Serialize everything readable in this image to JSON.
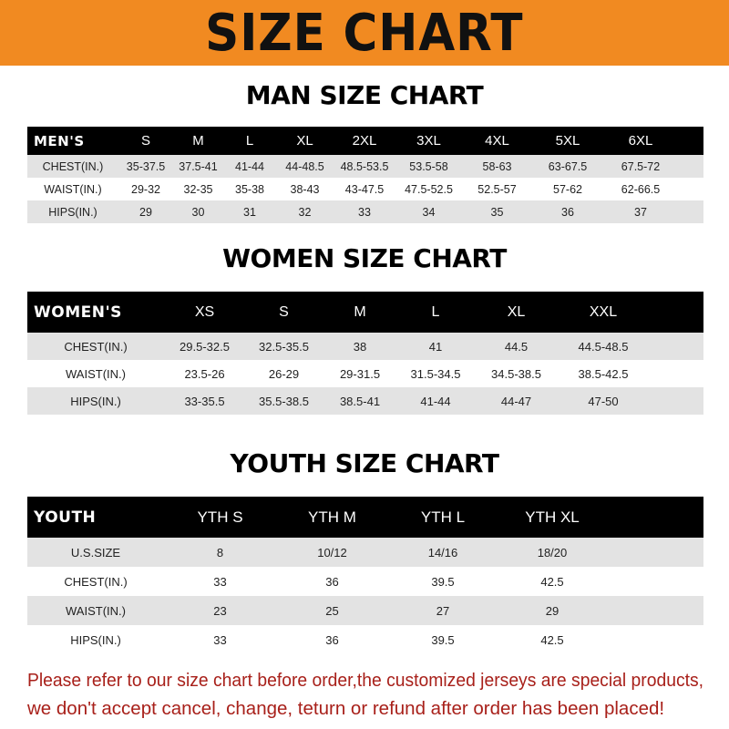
{
  "banner_title": "SIZE CHART",
  "men": {
    "title": "MAN SIZE CHART",
    "header": [
      "MEN'S",
      "S",
      "M",
      "L",
      "XL",
      "2XL",
      "3XL",
      "4XL",
      "5XL",
      "6XL"
    ],
    "rows": [
      [
        "CHEST(IN.)",
        "35-37.5",
        "37.5-41",
        "41-44",
        "44-48.5",
        "48.5-53.5",
        "53.5-58",
        "58-63",
        "63-67.5",
        "67.5-72"
      ],
      [
        "WAIST(IN.)",
        "29-32",
        "32-35",
        "35-38",
        "38-43",
        "43-47.5",
        "47.5-52.5",
        "52.5-57",
        "57-62",
        "62-66.5"
      ],
      [
        "HIPS(IN.)",
        "29",
        "30",
        "31",
        "32",
        "33",
        "34",
        "35",
        "36",
        "37"
      ]
    ]
  },
  "women": {
    "title": "WOMEN SIZE CHART",
    "header": [
      "WOMEN'S",
      "XS",
      "S",
      "M",
      "L",
      "XL",
      "XXL"
    ],
    "rows": [
      [
        "CHEST(IN.)",
        "29.5-32.5",
        "32.5-35.5",
        "38",
        "41",
        "44.5",
        "44.5-48.5"
      ],
      [
        "WAIST(IN.)",
        "23.5-26",
        "26-29",
        "29-31.5",
        "31.5-34.5",
        "34.5-38.5",
        "38.5-42.5"
      ],
      [
        "HIPS(IN.)",
        "33-35.5",
        "35.5-38.5",
        "38.5-41",
        "41-44",
        "44-47",
        "47-50"
      ]
    ]
  },
  "youth": {
    "title": "YOUTH SIZE CHART",
    "header": [
      "YOUTH",
      "YTH S",
      "YTH M",
      "YTH L",
      "YTH XL"
    ],
    "rows": [
      [
        "U.S.SIZE",
        "8",
        "10/12",
        "14/16",
        "18/20"
      ],
      [
        "CHEST(IN.)",
        "33",
        "36",
        "39.5",
        "42.5"
      ],
      [
        "WAIST(IN.)",
        "23",
        "25",
        "27",
        "29"
      ],
      [
        "HIPS(IN.)",
        "33",
        "36",
        "39.5",
        "42.5"
      ]
    ]
  },
  "note": {
    "line1": "Please refer to our size chart before order,the customized jerseys are special products,",
    "line2": "we don't accept cancel, change, teturn or refund after order has been placed!"
  },
  "colors": {
    "banner": "#f18a21",
    "header_row": "#000000",
    "stripe": "#e3e3e3",
    "note_text": "#a8201a"
  }
}
